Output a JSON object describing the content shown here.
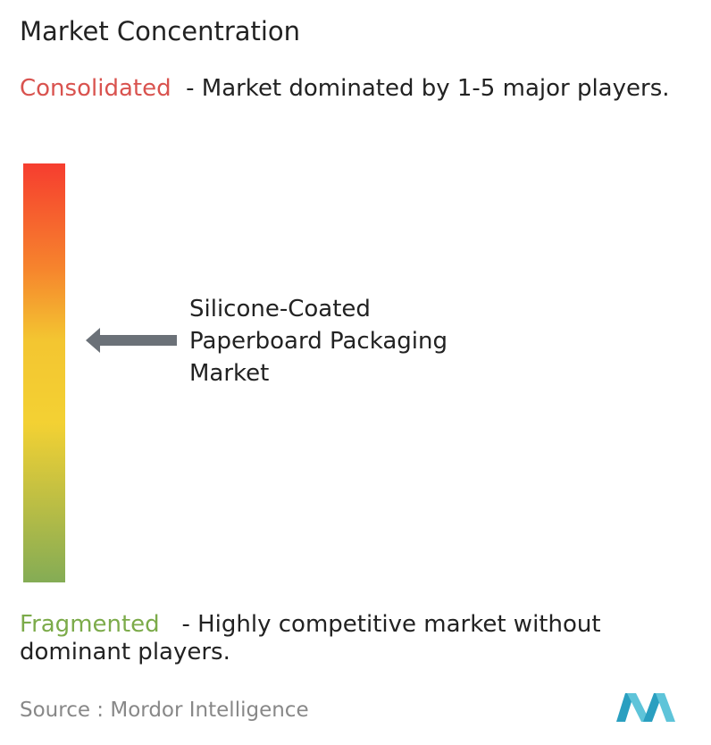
{
  "title": "Market Concentration",
  "consolidated": {
    "label": "Consolidated",
    "description": "- Market dominated by 1-5 major players."
  },
  "market": "Silicone-Coated Paperboard Packaging Market",
  "fragmented": {
    "label": "Fragmented",
    "description": "- Highly competitive market without dominant players."
  },
  "source": "Source : Mordor Intelligence"
}
